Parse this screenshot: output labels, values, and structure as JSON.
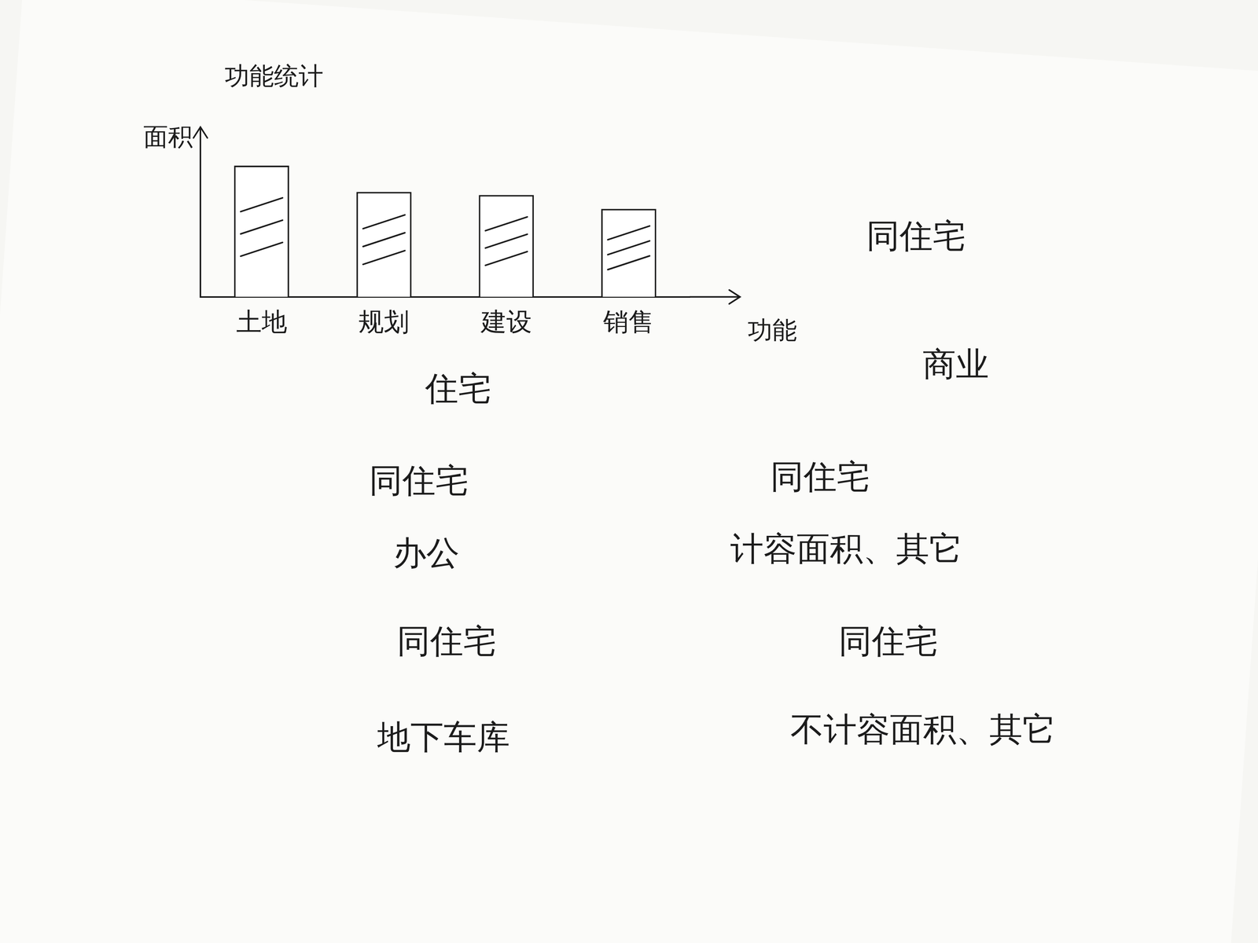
{
  "chart_data": {
    "type": "bar",
    "title": "功能统计",
    "x_label": "功能",
    "y_label": "面积",
    "categories": [
      "土地",
      "规划",
      "建设",
      "销售"
    ],
    "values": [
      85,
      68,
      66,
      57
    ],
    "color": "#ffffff",
    "ylim": [
      0,
      100
    ],
    "grid": false,
    "tick_labels": "x"
  },
  "notes": {
    "left": [
      "住宅",
      "同住宅",
      "办公",
      "同住宅",
      "地下车库"
    ],
    "right": [
      "同住宅",
      "商业",
      "同住宅",
      "计容面积、其它",
      "同住宅",
      "不计容面积、其它"
    ]
  }
}
